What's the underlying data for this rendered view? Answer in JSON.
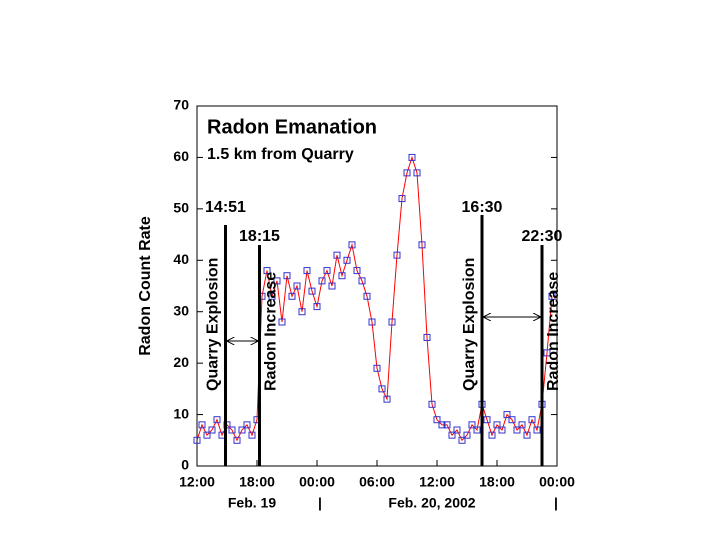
{
  "chart_data": {
    "type": "line",
    "title": "Radon Emanation",
    "subtitle": "1.5 km from Quarry",
    "y_label": "Radon Count Rate",
    "x": [
      0,
      0.5,
      1,
      1.5,
      2,
      2.5,
      3,
      3.5,
      4,
      4.5,
      5,
      5.5,
      6,
      6.5,
      7,
      7.5,
      8,
      8.5,
      9,
      9.5,
      10,
      10.5,
      11,
      11.5,
      12,
      12.5,
      13,
      13.5,
      14,
      14.5,
      15,
      15.5,
      16,
      16.5,
      17,
      17.5,
      18,
      18.5,
      19,
      19.5,
      20,
      20.5,
      21,
      21.5,
      22,
      22.5,
      23,
      23.5,
      24,
      24.5,
      25,
      25.5,
      26,
      26.5,
      27,
      27.5,
      28,
      28.5,
      29,
      29.5,
      30,
      30.5,
      31,
      31.5,
      32,
      32.5,
      33,
      33.5,
      34,
      34.5,
      35,
      35.5
    ],
    "series": [
      {
        "marker_color": "#3333cc",
        "color": "#ff0000",
        "values": [
          5,
          8,
          6,
          7,
          9,
          6,
          8,
          7,
          5,
          7,
          8,
          6,
          9,
          33,
          38,
          33,
          36,
          28,
          37,
          33,
          35,
          30,
          38,
          34,
          31,
          36,
          38,
          35,
          41,
          37,
          40,
          43,
          38,
          36,
          33,
          28,
          19,
          15,
          13,
          28,
          41,
          52,
          57,
          60,
          57,
          43,
          25,
          12,
          9,
          8,
          8,
          6,
          7,
          5,
          6,
          8,
          7,
          12,
          9,
          6,
          8,
          7,
          10,
          9,
          7,
          8,
          6,
          9,
          7,
          12,
          22,
          33
        ]
      }
    ],
    "xlim": [
      0,
      36
    ],
    "ylim": [
      0,
      70
    ],
    "xticks": [
      {
        "value": 0,
        "label": "12:00"
      },
      {
        "value": 6,
        "label": "18:00"
      },
      {
        "value": 12,
        "label": "00:00"
      },
      {
        "value": 18,
        "label": "06:00"
      },
      {
        "value": 24,
        "label": "12:00"
      },
      {
        "value": 30,
        "label": "18:00"
      },
      {
        "value": 36,
        "label": "00:00"
      }
    ],
    "yticks": [
      0,
      10,
      20,
      30,
      40,
      50,
      60,
      70
    ],
    "annotations": [
      {
        "x": 2.85,
        "time": "14:51",
        "label": "Quarry Explosion"
      },
      {
        "x": 6.25,
        "time": "18:15",
        "label": "Radon Increase"
      },
      {
        "x": 28.5,
        "time": "16:30",
        "label": "Quarry Explosion"
      },
      {
        "x": 34.5,
        "time": "22:30",
        "label": "Radon Increase"
      }
    ],
    "dates": [
      "Feb. 19",
      "Feb. 20, 2002"
    ],
    "separator": "|"
  }
}
